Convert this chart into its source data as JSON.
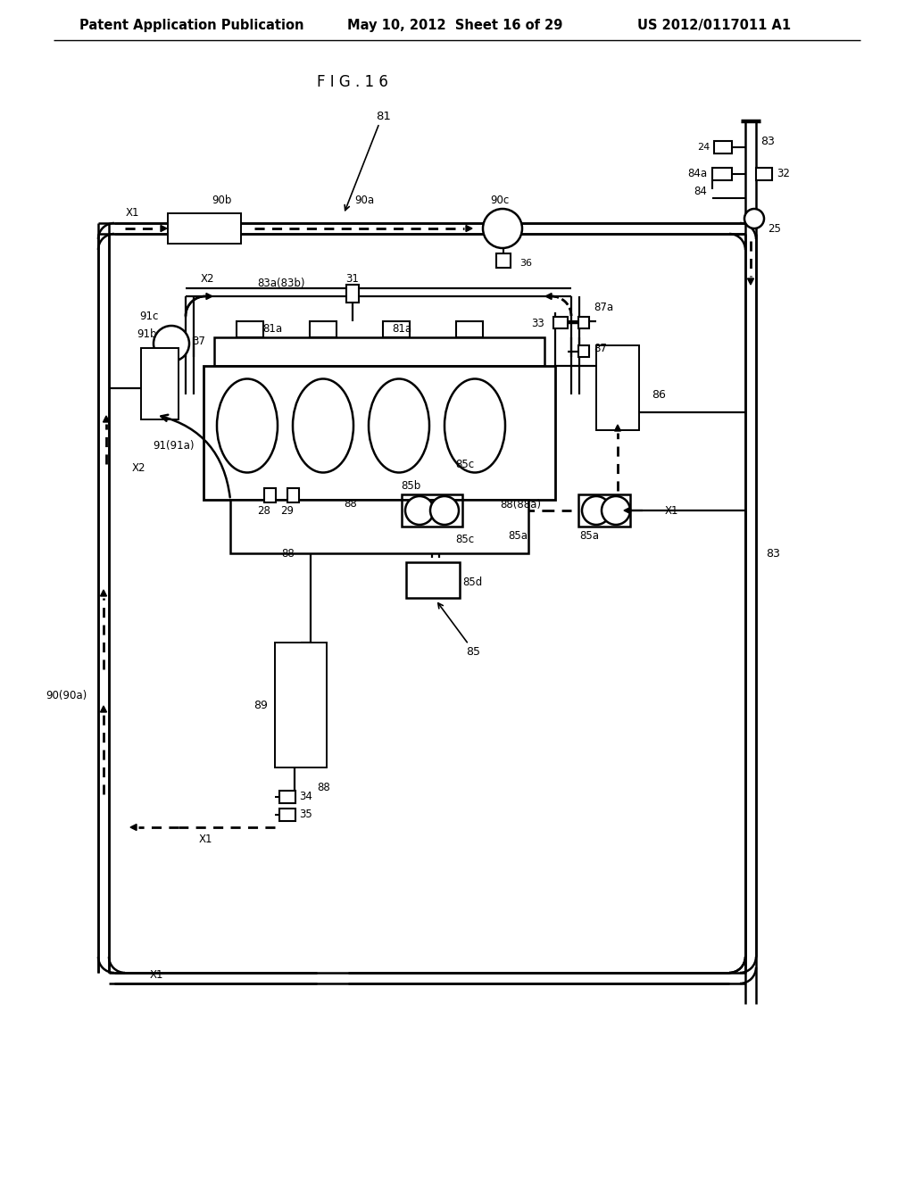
{
  "header_left": "Patent Application Publication",
  "header_mid": "May 10, 2012  Sheet 16 of 29",
  "header_right": "US 2012/0117011 A1",
  "fig_title": "F I G . 1 6",
  "fig_width": 10.24,
  "fig_height": 13.2,
  "bg_color": "#ffffff"
}
